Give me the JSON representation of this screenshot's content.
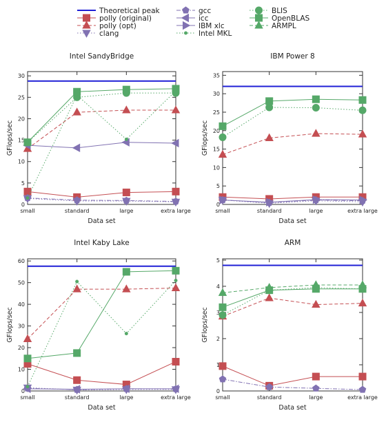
{
  "legend": {
    "entries": [
      {
        "key": "peak",
        "label": "Theoretical peak",
        "color": "#1f1fd6",
        "dash": "solid",
        "marker": "none"
      },
      {
        "key": "porig",
        "label": "polly (original)",
        "color": "#c44e52",
        "dash": "solid",
        "marker": "square"
      },
      {
        "key": "popt",
        "label": "polly (opt)",
        "color": "#c44e52",
        "dash": "dashed",
        "marker": "triangle-up"
      },
      {
        "key": "clang",
        "label": "clang",
        "color": "#8172b2",
        "dash": "dotted",
        "marker": "triangle-down"
      },
      {
        "key": "gcc",
        "label": "gcc",
        "color": "#8172b2",
        "dash": "dashdot",
        "marker": "pentagon"
      },
      {
        "key": "icc",
        "label": "icc",
        "color": "#8172b2",
        "dash": "solid",
        "marker": "triangle-left"
      },
      {
        "key": "xlc",
        "label": "IBM xlc",
        "color": "#8172b2",
        "dash": "solid",
        "marker": "triangle-right"
      },
      {
        "key": "mkl",
        "label": "Intel MKL",
        "color": "#55a868",
        "dash": "dotted",
        "marker": "dot"
      },
      {
        "key": "blis",
        "label": "BLIS",
        "color": "#55a868",
        "dash": "dotted",
        "marker": "circle"
      },
      {
        "key": "oblas",
        "label": "OpenBLAS",
        "color": "#55a868",
        "dash": "solid",
        "marker": "square"
      },
      {
        "key": "armpl",
        "label": "ARMPL",
        "color": "#55a868",
        "dash": "dashed",
        "marker": "triangle-up"
      }
    ]
  },
  "chart_data": [
    {
      "type": "line",
      "title": "Intel SandyBridge",
      "xlabel": "Data set",
      "ylabel": "GFlops/sec",
      "categories": [
        "small",
        "standard",
        "large",
        "extra large"
      ],
      "ylim": [
        0,
        31
      ],
      "yticks": [
        0,
        5,
        10,
        15,
        20,
        25,
        30
      ],
      "peak": 28.8,
      "series": [
        {
          "key": "porig",
          "values": [
            3.0,
            1.7,
            2.8,
            3.0
          ]
        },
        {
          "key": "popt",
          "values": [
            13.0,
            21.5,
            22.0,
            22.0
          ]
        },
        {
          "key": "clang",
          "values": [
            1.4,
            0.8,
            0.8,
            0.6
          ]
        },
        {
          "key": "gcc",
          "values": [
            1.5,
            1.0,
            0.9,
            0.7
          ]
        },
        {
          "key": "icc",
          "values": [
            13.8,
            13.2,
            14.5,
            14.3
          ]
        },
        {
          "key": "mkl",
          "values": [
            1.5,
            25.5,
            15.2,
            26.5
          ]
        },
        {
          "key": "blis",
          "values": [
            14.5,
            25.0,
            26.0,
            26.0
          ]
        },
        {
          "key": "oblas",
          "values": [
            14.5,
            26.3,
            26.8,
            27.0
          ]
        }
      ]
    },
    {
      "type": "line",
      "title": "IBM Power 8",
      "xlabel": "Data set",
      "ylabel": "GFlops/sec",
      "categories": [
        "small",
        "standard",
        "large",
        "extra large"
      ],
      "ylim": [
        0,
        36
      ],
      "yticks": [
        0,
        5,
        10,
        15,
        20,
        25,
        30,
        35
      ],
      "peak": 32.0,
      "series": [
        {
          "key": "porig",
          "values": [
            2.0,
            1.5,
            2.0,
            2.0
          ]
        },
        {
          "key": "popt",
          "values": [
            13.5,
            18.0,
            19.2,
            19.0
          ]
        },
        {
          "key": "clang",
          "values": [
            1.2,
            0.3,
            1.0,
            0.7
          ]
        },
        {
          "key": "gcc",
          "values": [
            1.2,
            0.5,
            1.2,
            1.0
          ]
        },
        {
          "key": "xlc",
          "values": [
            1.2,
            0.6,
            1.3,
            1.2
          ]
        },
        {
          "key": "blis",
          "values": [
            18.2,
            26.3,
            26.2,
            25.5
          ]
        },
        {
          "key": "oblas",
          "values": [
            21.2,
            28.0,
            28.5,
            28.3
          ]
        }
      ]
    },
    {
      "type": "line",
      "title": "Intel Kaby Lake",
      "xlabel": "Data set",
      "ylabel": "GFlops/sec",
      "categories": [
        "small",
        "standard",
        "large",
        "extra large"
      ],
      "ylim": [
        0,
        61
      ],
      "yticks": [
        0,
        10,
        20,
        30,
        40,
        50,
        60
      ],
      "peak": 57.6,
      "series": [
        {
          "key": "porig",
          "values": [
            12.5,
            5.0,
            3.0,
            13.5
          ]
        },
        {
          "key": "popt",
          "values": [
            24.0,
            47.0,
            47.0,
            47.5
          ]
        },
        {
          "key": "clang",
          "values": [
            1.5,
            0.5,
            0.7,
            0.7
          ]
        },
        {
          "key": "gcc",
          "values": [
            1.2,
            0.6,
            1.0,
            0.9
          ]
        },
        {
          "key": "icc",
          "values": [
            1.0,
            0.8,
            1.0,
            1.0
          ]
        },
        {
          "key": "mkl",
          "values": [
            2.0,
            50.5,
            26.5,
            51.0
          ]
        },
        {
          "key": "oblas",
          "values": [
            15.0,
            17.5,
            55.0,
            55.5
          ]
        }
      ]
    },
    {
      "type": "line",
      "title": "ARM",
      "xlabel": "Data set",
      "ylabel": "GFlops/sec",
      "categories": [
        "small",
        "standard",
        "large",
        "extra large"
      ],
      "ylim": [
        0,
        5.05
      ],
      "yticks": [
        0,
        1,
        2,
        3,
        4,
        5
      ],
      "peak": 4.8,
      "series": [
        {
          "key": "porig",
          "values": [
            0.95,
            0.2,
            0.55,
            0.55
          ]
        },
        {
          "key": "popt",
          "values": [
            2.85,
            3.55,
            3.3,
            3.35
          ]
        },
        {
          "key": "gcc",
          "values": [
            0.45,
            0.15,
            0.1,
            0.05
          ]
        },
        {
          "key": "blis",
          "values": [
            2.9,
            3.85,
            3.95,
            3.9
          ]
        },
        {
          "key": "oblas",
          "values": [
            3.2,
            3.85,
            3.9,
            3.9
          ]
        },
        {
          "key": "armpl",
          "values": [
            3.75,
            3.95,
            4.05,
            4.05
          ]
        }
      ]
    }
  ]
}
